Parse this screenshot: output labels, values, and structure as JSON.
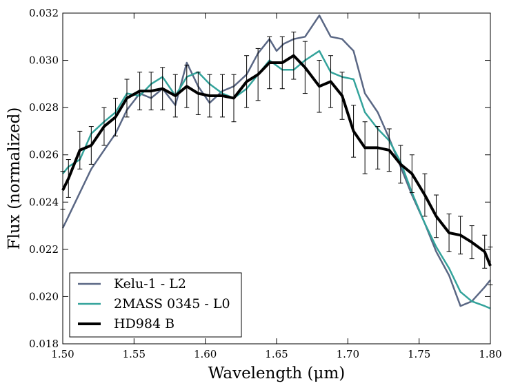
{
  "chart_data": {
    "type": "line",
    "xlabel": "Wavelength (μm)",
    "ylabel": "Flux (normalized)",
    "xlim": [
      1.5,
      1.8
    ],
    "ylim": [
      0.018,
      0.032
    ],
    "xticks": [
      "1.50",
      "1.55",
      "1.60",
      "1.65",
      "1.70",
      "1.75",
      "1.80"
    ],
    "xtick_values": [
      1.5,
      1.55,
      1.6,
      1.65,
      1.7,
      1.75,
      1.8
    ],
    "yticks": [
      "0.018",
      "0.020",
      "0.022",
      "0.024",
      "0.026",
      "0.028",
      "0.030",
      "0.032"
    ],
    "ytick_values": [
      0.018,
      0.02,
      0.022,
      0.024,
      0.026,
      0.028,
      0.03,
      0.032
    ],
    "legend_position": "lower-left",
    "series": [
      {
        "name": "Kelu-1 - L2",
        "color": "#5a6784",
        "width": "normal",
        "x": [
          1.5,
          1.504,
          1.512,
          1.52,
          1.529,
          1.537,
          1.545,
          1.554,
          1.562,
          1.57,
          1.579,
          1.587,
          1.595,
          1.603,
          1.612,
          1.62,
          1.629,
          1.637,
          1.645,
          1.65,
          1.655,
          1.662,
          1.67,
          1.68,
          1.688,
          1.696,
          1.704,
          1.712,
          1.721,
          1.729,
          1.737,
          1.745,
          1.754,
          1.762,
          1.771,
          1.779,
          1.787,
          1.796,
          1.8
        ],
        "values": [
          0.0229,
          0.0234,
          0.0244,
          0.0254,
          0.0262,
          0.0269,
          0.0279,
          0.0286,
          0.0284,
          0.0288,
          0.0281,
          0.0299,
          0.0289,
          0.0282,
          0.0287,
          0.0289,
          0.0294,
          0.0303,
          0.0309,
          0.0304,
          0.0307,
          0.0309,
          0.031,
          0.0319,
          0.031,
          0.0309,
          0.0304,
          0.0286,
          0.0278,
          0.0267,
          0.0255,
          0.0243,
          0.0231,
          0.0219,
          0.0209,
          0.0196,
          0.0198,
          0.0204,
          0.0207
        ]
      },
      {
        "name": "2MASS 0345 - L0",
        "color": "#33a39b",
        "width": "normal",
        "x": [
          1.5,
          1.504,
          1.512,
          1.52,
          1.529,
          1.537,
          1.545,
          1.554,
          1.562,
          1.57,
          1.579,
          1.587,
          1.595,
          1.603,
          1.612,
          1.62,
          1.629,
          1.637,
          1.645,
          1.654,
          1.662,
          1.67,
          1.68,
          1.688,
          1.696,
          1.704,
          1.712,
          1.721,
          1.729,
          1.737,
          1.745,
          1.754,
          1.762,
          1.771,
          1.779,
          1.787,
          1.796,
          1.8
        ],
        "values": [
          0.0252,
          0.0255,
          0.0258,
          0.0269,
          0.0274,
          0.0278,
          0.0286,
          0.0285,
          0.029,
          0.0293,
          0.0285,
          0.0293,
          0.0295,
          0.029,
          0.0286,
          0.0284,
          0.0288,
          0.0294,
          0.03,
          0.0296,
          0.0296,
          0.03,
          0.0304,
          0.0295,
          0.0293,
          0.0292,
          0.0278,
          0.0271,
          0.0266,
          0.0257,
          0.0244,
          0.0231,
          0.0221,
          0.0212,
          0.0202,
          0.0198,
          0.0196,
          0.0195
        ]
      },
      {
        "name": "HD984 B",
        "color": "#000000",
        "width": "bold",
        "x": [
          1.5,
          1.504,
          1.512,
          1.52,
          1.529,
          1.537,
          1.545,
          1.554,
          1.562,
          1.57,
          1.579,
          1.587,
          1.595,
          1.603,
          1.612,
          1.62,
          1.629,
          1.637,
          1.645,
          1.654,
          1.662,
          1.67,
          1.68,
          1.688,
          1.696,
          1.704,
          1.712,
          1.721,
          1.729,
          1.737,
          1.745,
          1.754,
          1.762,
          1.771,
          1.779,
          1.787,
          1.796,
          1.8
        ],
        "values": [
          0.0245,
          0.025,
          0.0262,
          0.0264,
          0.0272,
          0.0276,
          0.0284,
          0.0287,
          0.0287,
          0.0288,
          0.0285,
          0.0289,
          0.0286,
          0.0285,
          0.0285,
          0.0284,
          0.0291,
          0.0294,
          0.0299,
          0.0299,
          0.0302,
          0.0297,
          0.0289,
          0.0291,
          0.0285,
          0.027,
          0.0263,
          0.0263,
          0.0262,
          0.0256,
          0.0252,
          0.0243,
          0.0234,
          0.0227,
          0.0226,
          0.0223,
          0.0219,
          0.0213
        ],
        "errors": [
          0.0008,
          0.0008,
          0.0008,
          0.0008,
          0.0008,
          0.0008,
          0.0008,
          0.0008,
          0.0008,
          0.0009,
          0.0009,
          0.0009,
          0.0009,
          0.0009,
          0.0009,
          0.001,
          0.0011,
          0.0011,
          0.0011,
          0.0011,
          0.001,
          0.0011,
          0.0011,
          0.0011,
          0.001,
          0.0011,
          0.0011,
          0.0009,
          0.0009,
          0.0008,
          0.0008,
          0.0009,
          0.0009,
          0.0008,
          0.0008,
          0.0007,
          0.0007,
          0.0008
        ]
      }
    ]
  }
}
